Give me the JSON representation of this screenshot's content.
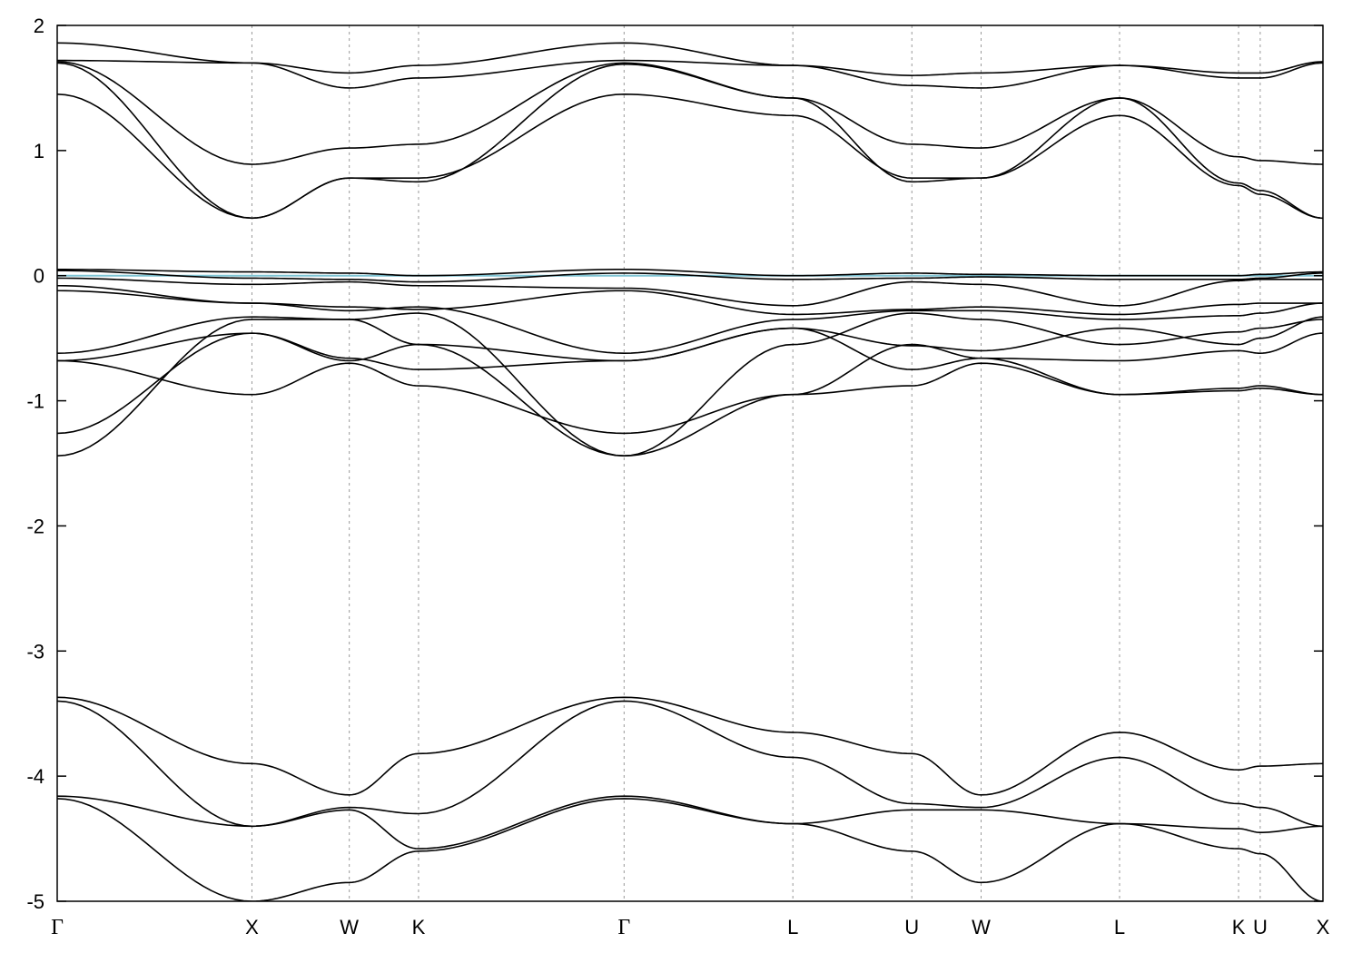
{
  "chart_data": {
    "type": "line",
    "title": "",
    "xlabel": "",
    "ylabel": "",
    "ylim": [
      -5,
      2
    ],
    "yticks": [
      2,
      1,
      0,
      -1,
      -2,
      -3,
      -4,
      -5
    ],
    "ytick_labels": [
      "2",
      "1",
      "0",
      "-1",
      "-2",
      "-3",
      "-4",
      "-5"
    ],
    "xlim": [
      0,
      5.85
    ],
    "kpoints": [
      {
        "label": "Γ",
        "x": 0.0
      },
      {
        "label": "X",
        "x": 0.9
      },
      {
        "label": "W",
        "x": 1.35
      },
      {
        "label": "K",
        "x": 1.67
      },
      {
        "label": "Γ",
        "x": 2.62
      },
      {
        "label": "L",
        "x": 3.4
      },
      {
        "label": "U",
        "x": 3.95
      },
      {
        "label": "W",
        "x": 4.27
      },
      {
        "label": "L",
        "x": 4.91
      },
      {
        "label": "K",
        "x": 5.46
      },
      {
        "label": "U",
        "x": 5.56
      },
      {
        "label": "X",
        "x": 5.85
      }
    ],
    "fermi_level": 0,
    "grid": "vertical dashed at k-points",
    "legend": "none",
    "colors": {
      "bands": "#000000",
      "fermi": "#7ec4d4",
      "grid": "#999999"
    },
    "series": [
      {
        "values": [
          1.86,
          1.7,
          1.62,
          1.68,
          1.86,
          1.68,
          1.6,
          1.62,
          1.68,
          1.62,
          1.62,
          1.71
        ]
      },
      {
        "values": [
          1.72,
          1.7,
          1.5,
          1.58,
          1.72,
          1.68,
          1.52,
          1.5,
          1.68,
          1.58,
          1.58,
          1.7
        ]
      },
      {
        "values": [
          1.71,
          0.89,
          1.02,
          1.05,
          1.7,
          1.42,
          1.05,
          1.02,
          1.42,
          0.95,
          0.92,
          0.89
        ]
      },
      {
        "values": [
          1.7,
          0.46,
          0.78,
          0.75,
          1.69,
          1.42,
          0.75,
          0.78,
          1.42,
          0.74,
          0.68,
          0.46
        ]
      },
      {
        "values": [
          1.45,
          0.46,
          0.78,
          0.78,
          1.45,
          1.28,
          0.78,
          0.78,
          1.28,
          0.72,
          0.65,
          0.46
        ]
      },
      {
        "values": [
          0.05,
          0.03,
          0.02,
          0.0,
          0.05,
          0.0,
          0.02,
          0.01,
          0.0,
          0.0,
          0.01,
          0.03
        ]
      },
      {
        "values": [
          0.04,
          -0.02,
          -0.03,
          -0.05,
          0.02,
          -0.03,
          -0.02,
          -0.01,
          -0.03,
          -0.03,
          -0.02,
          0.02
        ]
      },
      {
        "values": [
          -0.02,
          -0.07,
          -0.05,
          -0.08,
          -0.1,
          -0.24,
          -0.05,
          -0.07,
          -0.24,
          -0.04,
          -0.03,
          -0.03
        ]
      },
      {
        "values": [
          -0.08,
          -0.22,
          -0.25,
          -0.27,
          -0.12,
          -0.31,
          -0.27,
          -0.25,
          -0.31,
          -0.23,
          -0.22,
          -0.22
        ]
      },
      {
        "values": [
          -0.12,
          -0.22,
          -0.28,
          -0.25,
          -0.62,
          -0.35,
          -0.28,
          -0.28,
          -0.35,
          -0.32,
          -0.3,
          -0.22
        ]
      },
      {
        "values": [
          -0.62,
          -0.33,
          -0.35,
          -0.55,
          -0.68,
          -0.42,
          -0.56,
          -0.6,
          -0.42,
          -0.55,
          -0.5,
          -0.33
        ]
      },
      {
        "values": [
          -0.68,
          -0.46,
          -0.66,
          -0.75,
          -0.68,
          -0.42,
          -0.75,
          -0.66,
          -0.68,
          -0.6,
          -0.62,
          -0.46
        ]
      },
      {
        "values": [
          -0.68,
          -0.95,
          -0.7,
          -0.88,
          -1.26,
          -0.95,
          -0.88,
          -0.7,
          -0.95,
          -0.9,
          -0.88,
          -0.95
        ]
      },
      {
        "values": [
          -1.26,
          -0.46,
          -0.68,
          -0.55,
          -1.44,
          -0.95,
          -0.55,
          -0.66,
          -0.95,
          -0.92,
          -0.9,
          -0.95
        ]
      },
      {
        "values": [
          -1.44,
          -0.35,
          -0.35,
          -0.3,
          -1.44,
          -0.55,
          -0.3,
          -0.35,
          -0.55,
          -0.45,
          -0.42,
          -0.35
        ]
      },
      {
        "values": [
          -3.37,
          -3.9,
          -4.15,
          -3.82,
          -3.37,
          -3.65,
          -3.82,
          -4.15,
          -3.65,
          -3.95,
          -3.92,
          -3.9
        ]
      },
      {
        "values": [
          -3.4,
          -4.4,
          -4.25,
          -4.3,
          -3.4,
          -3.85,
          -4.22,
          -4.25,
          -3.85,
          -4.22,
          -4.25,
          -4.4
        ]
      },
      {
        "values": [
          -4.16,
          -4.4,
          -4.27,
          -4.58,
          -4.16,
          -4.38,
          -4.27,
          -4.27,
          -4.38,
          -4.42,
          -4.45,
          -4.4
        ]
      },
      {
        "values": [
          -4.18,
          -5.0,
          -4.85,
          -4.6,
          -4.18,
          -4.38,
          -4.6,
          -4.85,
          -4.38,
          -4.58,
          -4.62,
          -5.0
        ]
      }
    ]
  }
}
